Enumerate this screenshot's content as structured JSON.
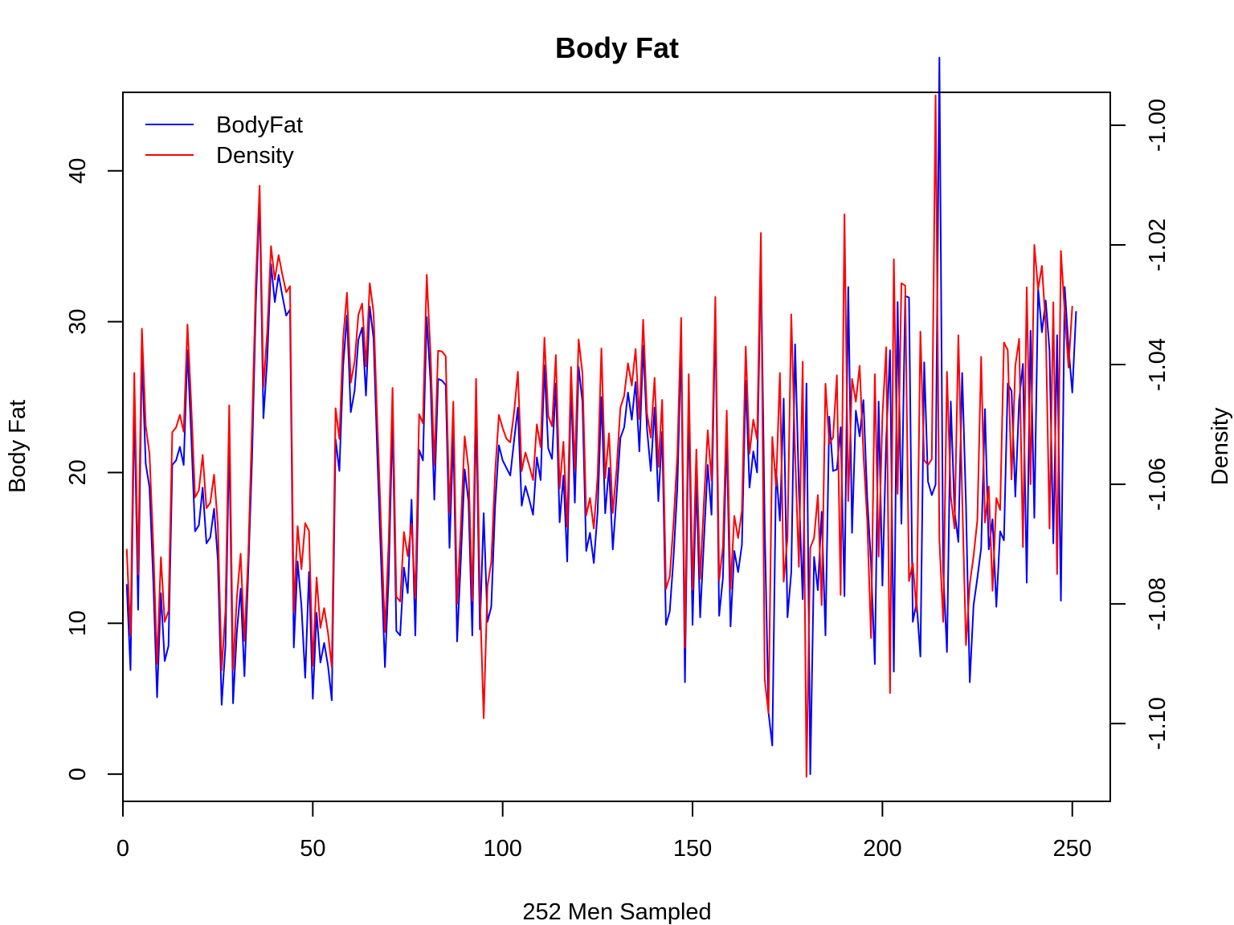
{
  "chart_data": {
    "type": "line",
    "title": "Body Fat",
    "xlabel": "252 Men Sampled",
    "ylabel": "Body Fat",
    "y2label": "Density",
    "xlim": [
      0,
      260
    ],
    "ylim": [
      -1.8,
      45.2
    ],
    "y2lim": [
      -1.113,
      -0.9945
    ],
    "xticks": [
      0,
      50,
      100,
      150,
      200,
      250
    ],
    "yticks": [
      0,
      10,
      20,
      30,
      40
    ],
    "y2ticks": [
      -1.1,
      -1.08,
      -1.06,
      -1.04,
      -1.02,
      -1.0
    ],
    "y2tick_labels": [
      "-1.10",
      "-1.08",
      "-1.06",
      "-1.04",
      "-1.02",
      "-1.00"
    ],
    "grid": false,
    "legend": {
      "placement": "top-left",
      "entries": [
        "BodyFat",
        "Density"
      ]
    },
    "colors": {
      "BodyFat": "#0000ff",
      "Density": "#ff0000"
    },
    "x_start": 1,
    "series": [
      {
        "name": "BodyFat",
        "axis": "left",
        "color": "#0000ff",
        "values": [
          12.6,
          6.9,
          24.6,
          10.9,
          27.8,
          20.6,
          19.0,
          12.8,
          5.1,
          12.0,
          7.5,
          8.5,
          20.5,
          20.8,
          21.7,
          20.5,
          28.1,
          22.4,
          16.1,
          16.5,
          19.0,
          15.3,
          15.7,
          17.6,
          14.2,
          4.6,
          8.5,
          22.4,
          4.7,
          9.4,
          12.3,
          6.5,
          13.4,
          20.9,
          31.1,
          38.1,
          23.6,
          27.5,
          33.8,
          31.3,
          33.1,
          31.7,
          30.4,
          30.8,
          8.4,
          14.1,
          11.2,
          6.4,
          13.4,
          5.0,
          10.7,
          7.4,
          8.7,
          7.2,
          4.9,
          22.2,
          20.1,
          27.1,
          30.4,
          24.0,
          25.4,
          28.8,
          29.6,
          25.1,
          31.0,
          28.9,
          21.1,
          14.0,
          7.1,
          13.2,
          23.6,
          9.5,
          9.2,
          13.7,
          12.0,
          18.2,
          9.2,
          21.5,
          20.8,
          30.3,
          26.0,
          18.2,
          26.2,
          26.1,
          25.8,
          15.0,
          22.6,
          8.8,
          14.3,
          20.2,
          18.1,
          9.2,
          24.2,
          9.6,
          17.3,
          10.1,
          11.1,
          17.7,
          21.8,
          20.8,
          20.3,
          19.8,
          22.1,
          24.3,
          17.8,
          19.1,
          18.2,
          17.2,
          21.0,
          19.5,
          27.1,
          21.6,
          20.9,
          25.9,
          16.7,
          19.8,
          14.1,
          25.8,
          18.0,
          27.0,
          24.7,
          14.8,
          16.0,
          14.0,
          17.4,
          25.0,
          17.3,
          20.3,
          14.9,
          18.5,
          22.3,
          23.0,
          25.3,
          23.5,
          26.0,
          21.4,
          28.4,
          22.9,
          20.1,
          24.3,
          18.1,
          22.7,
          9.9,
          10.8,
          14.4,
          19.0,
          28.6,
          6.1,
          24.5,
          9.9,
          19.5,
          10.4,
          15.5,
          20.5,
          17.2,
          30.6,
          10.5,
          13.0,
          22.5,
          9.8,
          14.8,
          13.4,
          15.2,
          26.1,
          19.0,
          21.4,
          20.0,
          34.3,
          16.5,
          4.1,
          1.9,
          20.2,
          16.8,
          24.9,
          10.4,
          13.4,
          28.5,
          19.0,
          11.6,
          25.9,
          0.0,
          14.4,
          12.2,
          17.4,
          9.2,
          23.7,
          20.1,
          20.2,
          23.0,
          11.8,
          32.3,
          16.0,
          24.1,
          22.4,
          24.8,
          18.3,
          14.0,
          7.3,
          24.7,
          12.5,
          22.2,
          28.1,
          6.8,
          31.3,
          16.6,
          31.7,
          31.6,
          10.1,
          11.4,
          7.8,
          27.3,
          19.4,
          18.5,
          19.2,
          47.5,
          13.5,
          8.1,
          24.7,
          17.4,
          15.4,
          26.6,
          17.9,
          6.1,
          11.2,
          13.0,
          15.0,
          24.2,
          14.9,
          16.9,
          11.1,
          16.1,
          15.5,
          25.9,
          25.4,
          18.4,
          24.8,
          27.2,
          12.7,
          29.4,
          17.0,
          32.2,
          29.3,
          31.4,
          28.1,
          15.3,
          29.1,
          11.5,
          32.3,
          28.3,
          25.3,
          30.7
        ]
      },
      {
        "name": "Density",
        "axis": "right",
        "color": "#ff0000",
        "values": [
          -1.0708,
          -1.0853,
          -1.0414,
          -1.0751,
          -1.034,
          -1.0502,
          -1.0549,
          -1.0704,
          -1.09,
          -1.0722,
          -1.083,
          -1.0812,
          -1.0513,
          -1.0505,
          -1.0484,
          -1.0512,
          -1.0333,
          -1.0468,
          -1.0622,
          -1.061,
          -1.0551,
          -1.064,
          -1.0631,
          -1.0584,
          -1.0668,
          -1.0911,
          -1.0811,
          -1.0468,
          -1.091,
          -1.079,
          -1.0716,
          -1.0862,
          -1.0719,
          -1.0502,
          -1.0263,
          -1.0101,
          -1.0438,
          -1.0346,
          -1.0202,
          -1.0258,
          -1.0217,
          -1.025,
          -1.0279,
          -1.0269,
          -1.0814,
          -1.067,
          -1.0742,
          -1.0665,
          -1.0678,
          -1.0903,
          -1.0756,
          -1.084,
          -1.0807,
          -1.0848,
          -1.0906,
          -1.0473,
          -1.0524,
          -1.0356,
          -1.028,
          -1.043,
          -1.0396,
          -1.0317,
          -1.0298,
          -1.0403,
          -1.0264,
          -1.0313,
          -1.0499,
          -1.0673,
          -1.0847,
          -1.0693,
          -1.0439,
          -1.0788,
          -1.0796,
          -1.068,
          -1.072,
          -1.0666,
          -1.079,
          -1.0483,
          -1.0498,
          -1.025,
          -1.0382,
          -1.0568,
          -1.0377,
          -1.0378,
          -1.0386,
          -1.0648,
          -1.0462,
          -1.08,
          -1.0666,
          -1.052,
          -1.0573,
          -1.0795,
          -1.0424,
          -1.0785,
          -1.0991,
          -1.077,
          -1.073,
          -1.0582,
          -1.0484,
          -1.0506,
          -1.0524,
          -1.053,
          -1.048,
          -1.0412,
          -1.0578,
          -1.0547,
          -1.0569,
          -1.0593,
          -1.05,
          -1.0538,
          -1.0355,
          -1.0486,
          -1.0503,
          -1.0384,
          -1.0607,
          -1.0529,
          -1.0671,
          -1.0404,
          -1.0575,
          -1.0358,
          -1.0414,
          -1.0652,
          -1.0623,
          -1.0674,
          -1.0587,
          -1.0373,
          -1.059,
          -1.0515,
          -1.0648,
          -1.0575,
          -1.0472,
          -1.0452,
          -1.0398,
          -1.0435,
          -1.0374,
          -1.0491,
          -1.0325,
          -1.0481,
          -1.0522,
          -1.0422,
          -1.0571,
          -1.0459,
          -1.0775,
          -1.0754,
          -1.0664,
          -1.055,
          -1.0322,
          -1.0873,
          -1.0416,
          -1.0776,
          -1.0542,
          -1.0758,
          -1.0629,
          -1.051,
          -1.0594,
          -1.0287,
          -1.0761,
          -1.0704,
          -1.0477,
          -1.0775,
          -1.0653,
          -1.069,
          -1.0644,
          -1.037,
          -1.0549,
          -1.0492,
          -1.0525,
          -1.018,
          -1.0926,
          -1.0983,
          -1.0521,
          -1.0603,
          -1.0414,
          -1.0763,
          -1.0689,
          -1.0316,
          -1.0549,
          -1.0738,
          -1.0395,
          -1.1089,
          -1.0706,
          -1.069,
          -1.0618,
          -1.0802,
          -1.0432,
          -1.0532,
          -1.0522,
          -1.0418,
          -1.0785,
          -1.0149,
          -1.0628,
          -1.0424,
          -1.0462,
          -1.0402,
          -1.055,
          -1.066,
          -1.0857,
          -1.0416,
          -1.0721,
          -1.0486,
          -1.0371,
          -1.0949,
          -1.0224,
          -1.0616,
          -1.0264,
          -1.0268,
          -1.0762,
          -1.0732,
          -1.0813,
          -1.0345,
          -1.056,
          -1.0568,
          -1.0558,
          -0.995,
          -1.0693,
          -1.083,
          -1.0412,
          -1.062,
          -1.0674,
          -1.0351,
          -1.0619,
          -1.0869,
          -1.0767,
          -1.072,
          -1.066,
          -1.0387,
          -1.0664,
          -1.0604,
          -1.0778,
          -1.0623,
          -1.0643,
          -1.0363,
          -1.0376,
          -1.0592,
          -1.0402,
          -1.0357,
          -1.0705,
          -1.0271,
          -1.06,
          -1.02,
          -1.0274,
          -1.0235,
          -1.0335,
          -1.0674,
          -1.0296,
          -1.075,
          -1.021,
          -1.0313,
          -1.0405,
          -1.0302
        ]
      }
    ]
  }
}
